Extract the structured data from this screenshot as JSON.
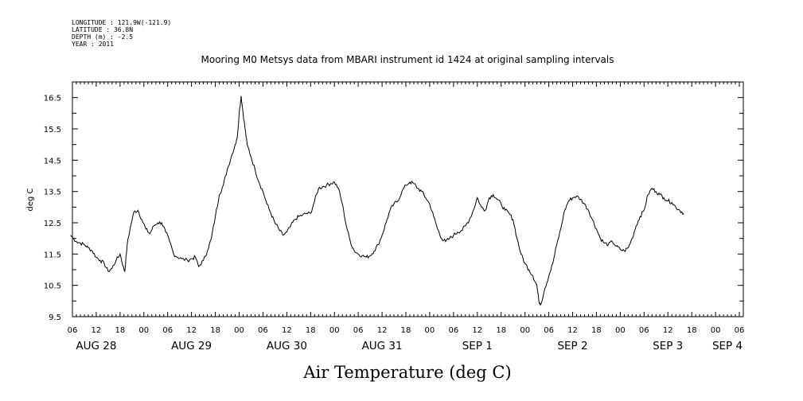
{
  "header": {
    "meta_lines": [
      "LONGITUDE : 121.9W(-121.9)",
      "LATITUDE : 36.8N",
      "DEPTH (m) : -2.5",
      "YEAR : 2011"
    ],
    "title": "Mooring M0 Metsys data from MBARI instrument id 1424 at original sampling intervals"
  },
  "chart_data": {
    "type": "line",
    "title": "Mooring M0 Metsys data from MBARI instrument id 1424 at original sampling intervals",
    "xlabel": "Air Temperature (deg C)",
    "ylabel": "deg C",
    "ylim": [
      9.5,
      17.0
    ],
    "yticks": [
      "9.5",
      "10.5",
      "11.5",
      "12.5",
      "13.5",
      "14.5",
      "15.5",
      "16.5"
    ],
    "xlim_hours": [
      0,
      169
    ],
    "x_unit": "hours since 2011-08-28 06:00",
    "hour_ticks": [
      "06",
      "12",
      "18",
      "00",
      "06",
      "12",
      "18",
      "00",
      "06",
      "12",
      "18",
      "00",
      "06",
      "12",
      "18",
      "00",
      "06",
      "12",
      "18",
      "00",
      "06",
      "12",
      "18",
      "00",
      "06",
      "12",
      "18",
      "00",
      "06"
    ],
    "date_labels": [
      "AUG 28",
      "AUG 29",
      "AUG 30",
      "AUG 31",
      "SEP  1",
      "SEP  2",
      "SEP  3",
      "SEP  4"
    ],
    "grid": false,
    "legend": "none",
    "series": [
      {
        "line_color": "#000000",
        "points": [
          [
            -0.5,
            12.1
          ],
          [
            1,
            11.9
          ],
          [
            2,
            11.85
          ],
          [
            3,
            11.8
          ],
          [
            4,
            11.7
          ],
          [
            5,
            11.6
          ],
          [
            6,
            11.4
          ],
          [
            7,
            11.3
          ],
          [
            8,
            11.2
          ],
          [
            9,
            10.95
          ],
          [
            10,
            11.05
          ],
          [
            11,
            11.3
          ],
          [
            12,
            11.5
          ],
          [
            12.8,
            11.1
          ],
          [
            13.2,
            10.95
          ],
          [
            13.8,
            11.8
          ],
          [
            14.5,
            12.3
          ],
          [
            15.5,
            12.85
          ],
          [
            16.5,
            12.9
          ],
          [
            17.5,
            12.6
          ],
          [
            18.5,
            12.3
          ],
          [
            19.5,
            12.15
          ],
          [
            20.5,
            12.4
          ],
          [
            21.5,
            12.5
          ],
          [
            22.5,
            12.5
          ],
          [
            23.5,
            12.2
          ],
          [
            24.5,
            11.9
          ],
          [
            25.5,
            11.5
          ],
          [
            26.5,
            11.4
          ],
          [
            27.5,
            11.35
          ],
          [
            29,
            11.3
          ],
          [
            30,
            11.35
          ],
          [
            31,
            11.4
          ],
          [
            31.8,
            11.1
          ],
          [
            33,
            11.3
          ],
          [
            34,
            11.6
          ],
          [
            35,
            12.0
          ],
          [
            36,
            12.7
          ],
          [
            37,
            13.4
          ],
          [
            38,
            13.7
          ],
          [
            39,
            14.2
          ],
          [
            40,
            14.6
          ],
          [
            41,
            15.0
          ],
          [
            41.5,
            15.2
          ],
          [
            42,
            16.0
          ],
          [
            42.5,
            16.55
          ],
          [
            43,
            16.0
          ],
          [
            43.5,
            15.5
          ],
          [
            44,
            15.0
          ],
          [
            45,
            14.6
          ],
          [
            46,
            14.2
          ],
          [
            47,
            13.8
          ],
          [
            48,
            13.5
          ],
          [
            49,
            13.1
          ],
          [
            50,
            12.8
          ],
          [
            51,
            12.5
          ],
          [
            52,
            12.3
          ],
          [
            53,
            12.1
          ],
          [
            54,
            12.2
          ],
          [
            55,
            12.4
          ],
          [
            56,
            12.6
          ],
          [
            57,
            12.7
          ],
          [
            58,
            12.75
          ],
          [
            59,
            12.8
          ],
          [
            60,
            12.8
          ],
          [
            61,
            13.2
          ],
          [
            62,
            13.6
          ],
          [
            63,
            13.65
          ],
          [
            64,
            13.7
          ],
          [
            65,
            13.75
          ],
          [
            66,
            13.8
          ],
          [
            67,
            13.6
          ],
          [
            68,
            13.1
          ],
          [
            69,
            12.4
          ],
          [
            70,
            11.9
          ],
          [
            71,
            11.6
          ],
          [
            72,
            11.5
          ],
          [
            73,
            11.45
          ],
          [
            74,
            11.4
          ],
          [
            75,
            11.45
          ],
          [
            76,
            11.6
          ],
          [
            77,
            11.8
          ],
          [
            78,
            12.1
          ],
          [
            79,
            12.5
          ],
          [
            80,
            12.9
          ],
          [
            81,
            13.1
          ],
          [
            82,
            13.2
          ],
          [
            83,
            13.5
          ],
          [
            84,
            13.7
          ],
          [
            85,
            13.8
          ],
          [
            86,
            13.75
          ],
          [
            87,
            13.6
          ],
          [
            88,
            13.5
          ],
          [
            89,
            13.3
          ],
          [
            90,
            13.1
          ],
          [
            91,
            12.7
          ],
          [
            92,
            12.3
          ],
          [
            93,
            12.0
          ],
          [
            94,
            11.9
          ],
          [
            95,
            12.0
          ],
          [
            96,
            12.1
          ],
          [
            97,
            12.2
          ],
          [
            98,
            12.25
          ],
          [
            99,
            12.4
          ],
          [
            100,
            12.6
          ],
          [
            101,
            12.9
          ],
          [
            102,
            13.3
          ],
          [
            103,
            13.0
          ],
          [
            104,
            12.9
          ],
          [
            105,
            13.3
          ],
          [
            106,
            13.4
          ],
          [
            107,
            13.25
          ],
          [
            108,
            13.1
          ],
          [
            109,
            12.9
          ],
          [
            110,
            12.8
          ],
          [
            111,
            12.6
          ],
          [
            112,
            12.0
          ],
          [
            113,
            11.5
          ],
          [
            114,
            11.2
          ],
          [
            115,
            11.0
          ],
          [
            116,
            10.8
          ],
          [
            117,
            10.5
          ],
          [
            117.5,
            10.0
          ],
          [
            118,
            9.9
          ],
          [
            119,
            10.4
          ],
          [
            120,
            10.8
          ],
          [
            121,
            11.2
          ],
          [
            122,
            11.8
          ],
          [
            123,
            12.3
          ],
          [
            124,
            12.9
          ],
          [
            125,
            13.2
          ],
          [
            126,
            13.3
          ],
          [
            127,
            13.35
          ],
          [
            128,
            13.25
          ],
          [
            129,
            13.1
          ],
          [
            130,
            12.9
          ],
          [
            131,
            12.6
          ],
          [
            132,
            12.3
          ],
          [
            133,
            12.0
          ],
          [
            134,
            11.85
          ],
          [
            135,
            11.8
          ],
          [
            136,
            11.9
          ],
          [
            137,
            11.75
          ],
          [
            138,
            11.65
          ],
          [
            139,
            11.6
          ],
          [
            140,
            11.7
          ],
          [
            141,
            12.0
          ],
          [
            142,
            12.4
          ],
          [
            143,
            12.7
          ],
          [
            144,
            12.9
          ],
          [
            145,
            13.4
          ],
          [
            146,
            13.6
          ],
          [
            147,
            13.5
          ],
          [
            148,
            13.4
          ],
          [
            149,
            13.3
          ],
          [
            150,
            13.2
          ],
          [
            151,
            13.15
          ],
          [
            152,
            13.0
          ],
          [
            153,
            12.9
          ],
          [
            154,
            12.8
          ]
        ]
      }
    ]
  }
}
